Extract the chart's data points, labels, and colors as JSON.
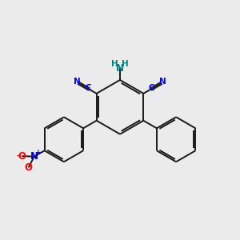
{
  "bg_color": "#ebebeb",
  "bond_color": "#1a1a1a",
  "bond_width": 1.4,
  "cn_color": "#0000ff",
  "nh2_h_color": "#008080",
  "nh2_n_color": "#008080",
  "no2_n_color": "#0000cd",
  "no2_o_color": "#ff0000",
  "figsize": [
    3.0,
    3.0
  ],
  "dpi": 100,
  "xlim": [
    0,
    10
  ],
  "ylim": [
    0,
    10
  ]
}
